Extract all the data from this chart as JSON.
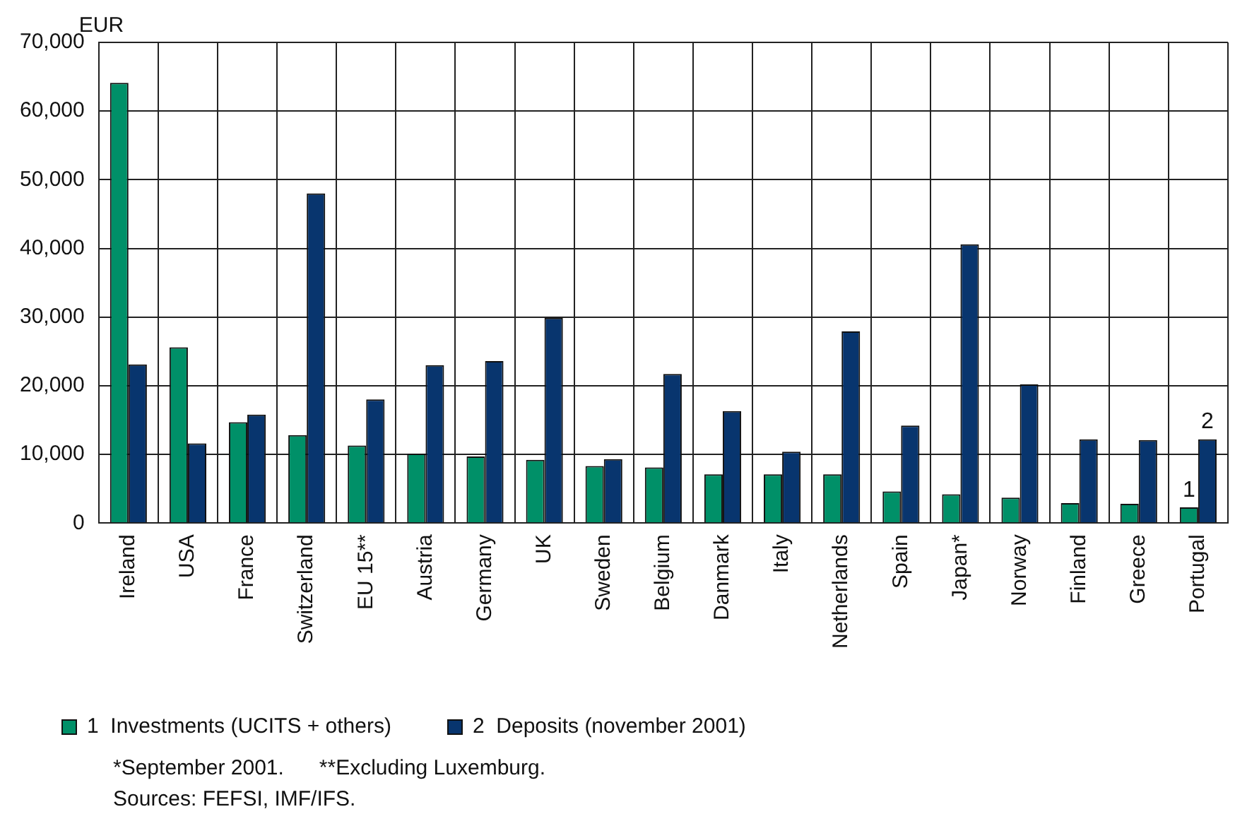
{
  "chart_data": {
    "type": "bar",
    "ylabel": "EUR",
    "categories": [
      "Ireland",
      "USA",
      "France",
      "Switzerland",
      "EU 15**",
      "Austria",
      "Germany",
      "UK",
      "Sweden",
      "Belgium",
      "Danmark",
      "Italy",
      "Netherlands",
      "Spain",
      "Japan*",
      "Norway",
      "Finland",
      "Greece",
      "Portugal"
    ],
    "series": [
      {
        "name": "1  Investments (UCITS + others)",
        "color": "#009068",
        "values": [
          64100,
          25600,
          14700,
          12800,
          11300,
          10100,
          9700,
          9200,
          8300,
          8100,
          7100,
          7100,
          7100,
          4600,
          4200,
          3700,
          2900,
          2800,
          2300
        ]
      },
      {
        "name": "2  Deposits (november 2001)",
        "color": "#08356e",
        "values": [
          23100,
          11600,
          15800,
          48000,
          18000,
          23000,
          23600,
          29900,
          9300,
          21700,
          16300,
          10400,
          27900,
          14200,
          40600,
          20200,
          12200,
          12100,
          12200
        ]
      }
    ],
    "ylim": [
      0,
      70000
    ],
    "yticks": [
      {
        "value": 0,
        "label": "0"
      },
      {
        "value": 10000,
        "label": "10,000"
      },
      {
        "value": 20000,
        "label": "20,000"
      },
      {
        "value": 30000,
        "label": "30,000"
      },
      {
        "value": 40000,
        "label": "40,000"
      },
      {
        "value": 50000,
        "label": "50,000"
      },
      {
        "value": 60000,
        "label": "60,000"
      },
      {
        "value": 70000,
        "label": "70,000"
      }
    ],
    "grid": true,
    "legend": "bottom",
    "annotations": [
      {
        "text": "1",
        "x": "Portugal",
        "y": 2300
      },
      {
        "text": "2",
        "x": "Portugal",
        "y": 12200
      },
      "*September 2001.      **Excluding Luxemburg.",
      "Sources: FEFSI, IMF/IFS."
    ]
  }
}
